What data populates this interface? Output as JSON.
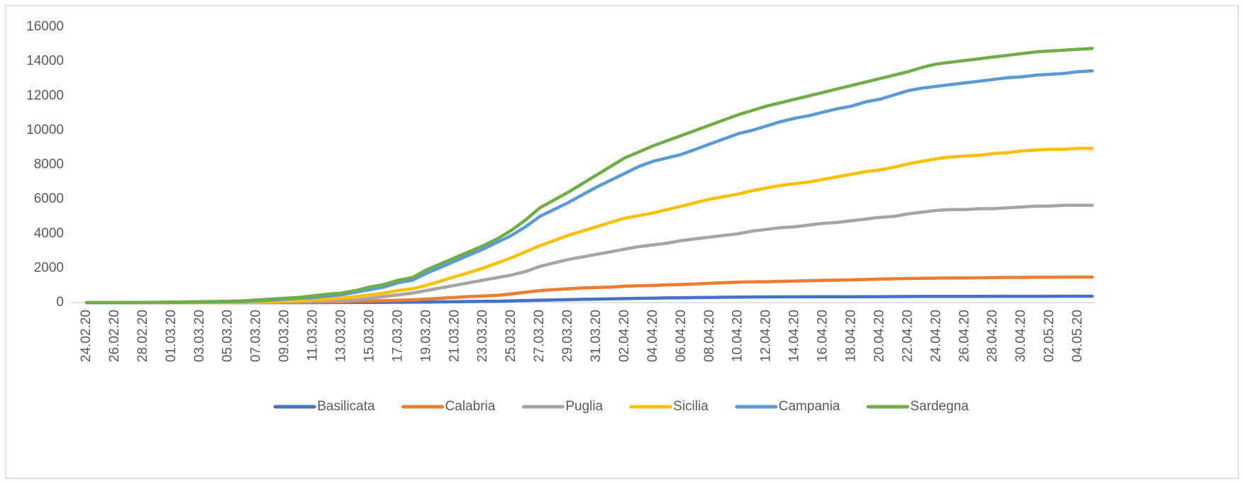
{
  "chart_data": {
    "type": "line",
    "categories": [
      "24.02.20",
      null,
      "26.02.20",
      null,
      "28.02.20",
      null,
      "01.03.20",
      null,
      "03.03.20",
      null,
      "05.03.20",
      null,
      "07.03.20",
      null,
      "09.03.20",
      null,
      "11.03.20",
      null,
      "13.03.20",
      null,
      "15.03.20",
      null,
      "17.03.20",
      null,
      "19.03.20",
      null,
      "21.03.20",
      null,
      "23.03.20",
      null,
      "25.03.20",
      null,
      "27.03.20",
      null,
      "29.03.20",
      null,
      "31.03.20",
      null,
      "02.04.20",
      null,
      "04.04.20",
      null,
      "06.04.20",
      null,
      "08.04.20",
      null,
      "10.04.20",
      null,
      "12.04.20",
      null,
      "14.04.20",
      null,
      "16.04.20",
      null,
      "18.04.20",
      null,
      "20.04.20",
      null,
      "22.04.20",
      null,
      "24.04.20",
      null,
      "26.04.20",
      null,
      "28.04.20",
      null,
      "30.04.20",
      null,
      "02.05.20",
      null,
      "04.05.20",
      null
    ],
    "series": [
      {
        "name": "Basilicata",
        "color": "#4472c4",
        "values": [
          0,
          0,
          0,
          0,
          0,
          0,
          0,
          0,
          0,
          0,
          0,
          0,
          0,
          0,
          0,
          0,
          2,
          5,
          8,
          10,
          12,
          15,
          20,
          25,
          30,
          40,
          50,
          60,
          70,
          80,
          100,
          120,
          140,
          155,
          170,
          190,
          200,
          215,
          230,
          245,
          260,
          270,
          280,
          290,
          300,
          310,
          320,
          325,
          330,
          332,
          335,
          337,
          340,
          340,
          342,
          344,
          345,
          350,
          355,
          358,
          360,
          360,
          362,
          362,
          365,
          365,
          366,
          368,
          368,
          370,
          370,
          370
        ]
      },
      {
        "name": "Calabria",
        "color": "#ed7d31",
        "values": [
          0,
          0,
          0,
          0,
          0,
          0,
          0,
          0,
          0,
          0,
          0,
          0,
          5,
          10,
          15,
          20,
          30,
          40,
          50,
          70,
          90,
          110,
          130,
          160,
          200,
          250,
          300,
          350,
          380,
          420,
          500,
          600,
          700,
          750,
          800,
          850,
          870,
          900,
          950,
          980,
          1000,
          1030,
          1050,
          1080,
          1120,
          1150,
          1180,
          1200,
          1210,
          1230,
          1250,
          1270,
          1290,
          1300,
          1320,
          1340,
          1360,
          1380,
          1400,
          1410,
          1420,
          1430,
          1430,
          1440,
          1450,
          1460,
          1460,
          1470,
          1470,
          1480,
          1480,
          1480
        ]
      },
      {
        "name": "Puglia",
        "color": "#a5a5a5",
        "values": [
          0,
          0,
          0,
          0,
          0,
          0,
          0,
          0,
          0,
          0,
          0,
          0,
          10,
          20,
          30,
          40,
          60,
          80,
          100,
          150,
          250,
          350,
          450,
          550,
          700,
          850,
          1000,
          1150,
          1300,
          1450,
          1600,
          1800,
          2100,
          2300,
          2500,
          2650,
          2800,
          2950,
          3100,
          3250,
          3350,
          3450,
          3600,
          3700,
          3800,
          3900,
          4000,
          4150,
          4250,
          4350,
          4400,
          4500,
          4600,
          4650,
          4750,
          4850,
          4950,
          5000,
          5150,
          5250,
          5350,
          5400,
          5400,
          5450,
          5450,
          5500,
          5550,
          5600,
          5600,
          5650,
          5650,
          5650
        ]
      },
      {
        "name": "Sicilia",
        "color": "#ffc000",
        "values": [
          0,
          0,
          0,
          0,
          0,
          0,
          0,
          0,
          0,
          0,
          10,
          20,
          30,
          50,
          80,
          100,
          150,
          200,
          250,
          350,
          450,
          550,
          700,
          800,
          1000,
          1250,
          1500,
          1750,
          2000,
          2300,
          2600,
          2950,
          3300,
          3600,
          3900,
          4150,
          4400,
          4650,
          4900,
          5050,
          5200,
          5400,
          5600,
          5800,
          6000,
          6150,
          6300,
          6500,
          6650,
          6800,
          6900,
          7000,
          7150,
          7300,
          7450,
          7600,
          7700,
          7850,
          8050,
          8200,
          8350,
          8450,
          8500,
          8550,
          8650,
          8700,
          8800,
          8850,
          8900,
          8900,
          8950,
          8950
        ]
      },
      {
        "name": "Campania",
        "color": "#5b9bd5",
        "values": [
          0,
          0,
          0,
          0,
          0,
          0,
          10,
          20,
          30,
          40,
          50,
          70,
          100,
          150,
          200,
          250,
          300,
          380,
          450,
          600,
          750,
          900,
          1150,
          1300,
          1700,
          2050,
          2400,
          2750,
          3100,
          3500,
          3900,
          4400,
          5000,
          5400,
          5800,
          6250,
          6700,
          7100,
          7500,
          7900,
          8200,
          8400,
          8600,
          8900,
          9200,
          9500,
          9800,
          10000,
          10250,
          10500,
          10700,
          10850,
          11050,
          11250,
          11400,
          11650,
          11800,
          12050,
          12300,
          12450,
          12550,
          12650,
          12750,
          12850,
          12950,
          13050,
          13100,
          13200,
          13250,
          13300,
          13400,
          13450
        ]
      },
      {
        "name": "Sardegna",
        "color": "#70ad47",
        "values": [
          0,
          0,
          0,
          0,
          10,
          20,
          30,
          40,
          50,
          60,
          80,
          100,
          150,
          200,
          250,
          300,
          400,
          480,
          550,
          700,
          900,
          1050,
          1300,
          1450,
          1900,
          2250,
          2600,
          2950,
          3300,
          3700,
          4200,
          4800,
          5500,
          5950,
          6400,
          6900,
          7400,
          7900,
          8400,
          8750,
          9100,
          9400,
          9700,
          10000,
          10300,
          10600,
          10900,
          11150,
          11400,
          11600,
          11800,
          12000,
          12200,
          12400,
          12600,
          12800,
          13000,
          13200,
          13400,
          13650,
          13850,
          13950,
          14050,
          14150,
          14250,
          14350,
          14450,
          14550,
          14600,
          14650,
          14700,
          14750
        ]
      }
    ],
    "ylim": [
      0,
      16000
    ],
    "yticks": [
      0,
      2000,
      4000,
      6000,
      8000,
      10000,
      12000,
      14000,
      16000
    ],
    "grid": false,
    "legend": "bottom"
  }
}
